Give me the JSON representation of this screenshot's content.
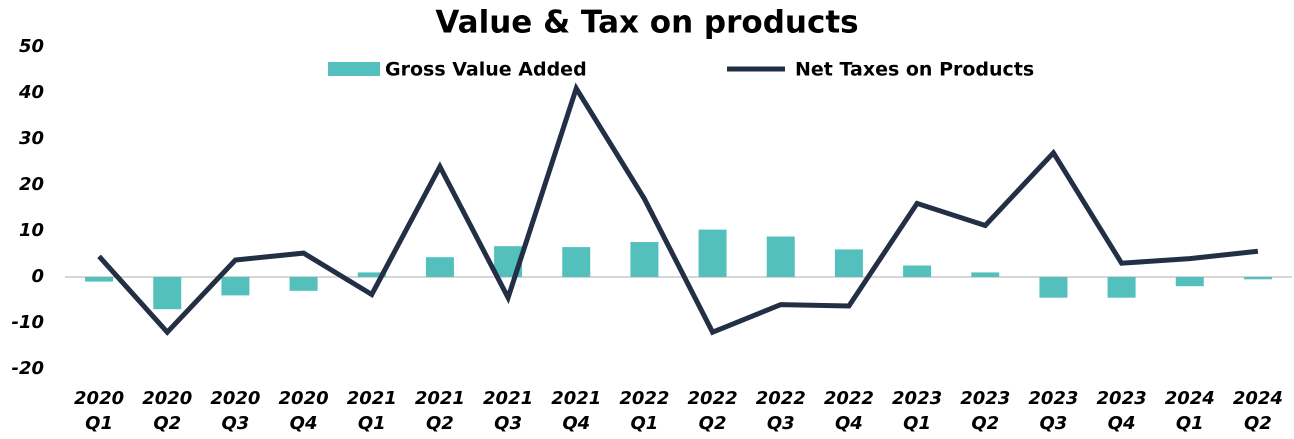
{
  "chart_data": {
    "type": "combo",
    "title": "Value & Tax on products",
    "categories": [
      [
        "2020",
        "Q1"
      ],
      [
        "2020",
        "Q2"
      ],
      [
        "2020",
        "Q3"
      ],
      [
        "2020",
        "Q4"
      ],
      [
        "2021",
        "Q1"
      ],
      [
        "2021",
        "Q2"
      ],
      [
        "2021",
        "Q3"
      ],
      [
        "2021",
        "Q4"
      ],
      [
        "2022",
        "Q1"
      ],
      [
        "2022",
        "Q2"
      ],
      [
        "2022",
        "Q3"
      ],
      [
        "2022",
        "Q4"
      ],
      [
        "2023",
        "Q1"
      ],
      [
        "2023",
        "Q2"
      ],
      [
        "2023",
        "Q3"
      ],
      [
        "2023",
        "Q4"
      ],
      [
        "2024",
        "Q1"
      ],
      [
        "2024",
        "Q2"
      ]
    ],
    "series": [
      {
        "name": "Gross Value Added",
        "type": "bar",
        "color": "#53c0bd",
        "values": [
          -1,
          -7,
          -4,
          -3,
          1,
          4.3,
          6.7,
          6.5,
          7.6,
          10.3,
          8.8,
          6,
          2.5,
          1,
          -4.5,
          -4.5,
          -2,
          -0.5
        ]
      },
      {
        "name": "Net Taxes on Products",
        "type": "line",
        "color": "#232f45",
        "values": [
          4.5,
          -12,
          3.7,
          5.2,
          -3.8,
          24,
          -4.5,
          41,
          17,
          -12,
          -6,
          -6.3,
          16,
          11.2,
          27,
          3,
          4,
          5.6
        ]
      }
    ],
    "ylim": [
      -20,
      50
    ],
    "yticks": [
      -20,
      -10,
      0,
      10,
      20,
      30,
      40,
      50
    ],
    "grid": false,
    "legend": "top"
  }
}
